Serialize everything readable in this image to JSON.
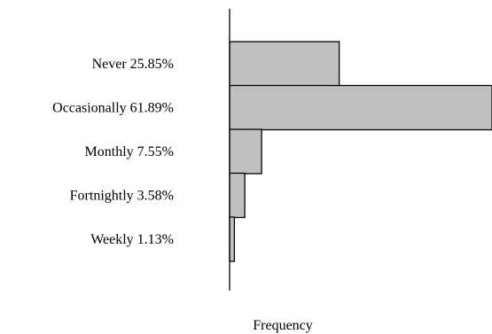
{
  "chart_data": {
    "type": "bar",
    "orientation": "horizontal",
    "categories": [
      "Never 25.85%",
      "Occasionally 61.89%",
      "Monthly 7.55%",
      "Fortnightly 3.58%",
      "Weekly 1.13%"
    ],
    "values": [
      25.85,
      61.89,
      7.55,
      3.58,
      1.13
    ],
    "xlabel": "Frequency",
    "ylabel": "",
    "xlim": [
      0,
      61.89
    ],
    "grid": false,
    "legend": "none",
    "bar_color": "#c0c0c0",
    "bar_edge_color": "#000000"
  }
}
